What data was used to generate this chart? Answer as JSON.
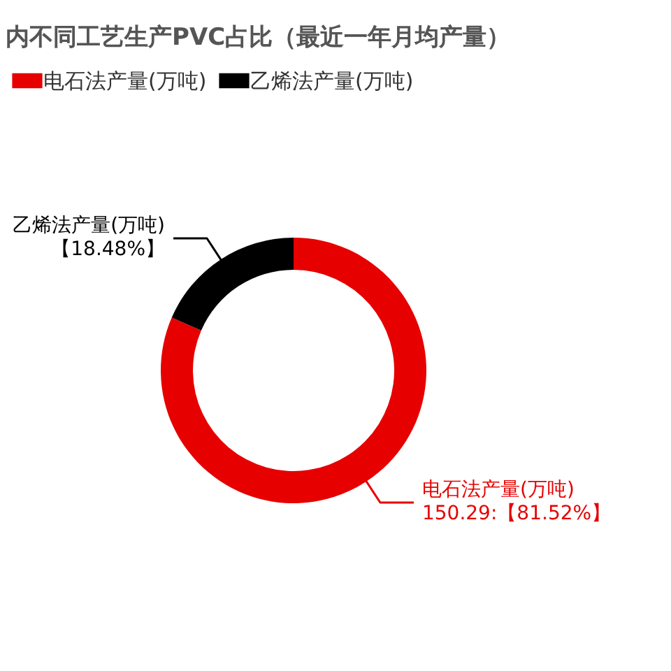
{
  "chart_data": {
    "type": "donut",
    "title": "内不同工艺生产PVC占比（最近一年月均产量）",
    "categories": [
      "电石法产量(万吨)",
      "乙烯法产量(万吨)"
    ],
    "values": [
      81.52,
      18.48
    ],
    "colors": [
      "#e60000",
      "#000000"
    ],
    "value_labels": [
      "150.29:【81.52%】",
      "【18.48%】"
    ],
    "legend": "top"
  }
}
